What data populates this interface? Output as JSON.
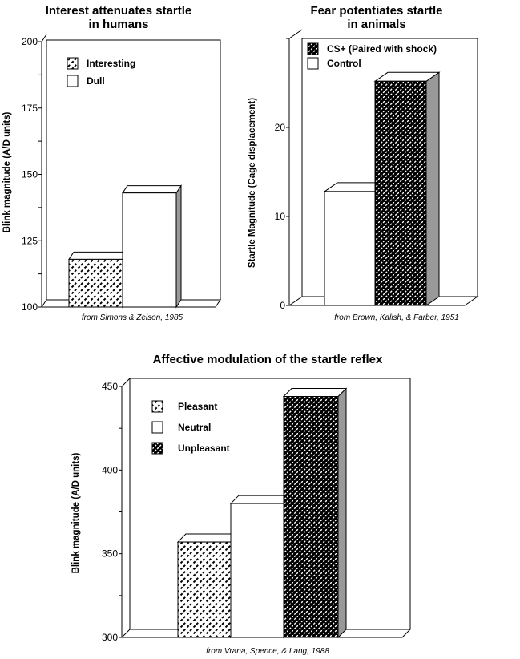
{
  "chart_data": [
    {
      "type": "bar",
      "title": [
        "Interest attenuates startle",
        "in humans"
      ],
      "ylabel": "Blink magnitude (A/D units)",
      "xlabel": "",
      "source": "from Simons &  Zelson, 1985",
      "ylim": [
        100,
        200
      ],
      "yticks": [
        100,
        125,
        150,
        175,
        200
      ],
      "categories": [
        "Interesting",
        "Dull"
      ],
      "values": [
        118,
        143
      ],
      "fills": [
        "diag-light",
        "white"
      ],
      "legend": [
        {
          "label": "Interesting",
          "fill": "diag-light"
        },
        {
          "label": "Dull",
          "fill": "white"
        }
      ],
      "legend_placement": "top-left"
    },
    {
      "type": "bar",
      "title": [
        "Fear potentiates startle",
        "in  animals"
      ],
      "ylabel": "Startle Magnitude (Cage displacement)",
      "xlabel": "",
      "source": "from Brown, Kalish, & Farber, 1951",
      "ylim": [
        0,
        30
      ],
      "yticks": [
        0,
        10,
        20
      ],
      "categories": [
        "Control",
        "CS+ (Paired with shock)"
      ],
      "values": [
        12.8,
        25.2
      ],
      "fills": [
        "white",
        "diag-dark"
      ],
      "legend": [
        {
          "label": "CS+ (Paired with shock)",
          "fill": "diag-dark"
        },
        {
          "label": "Control",
          "fill": "white"
        }
      ],
      "legend_placement": "top-left"
    },
    {
      "type": "bar",
      "title": [
        "Affective modulation of the startle reflex"
      ],
      "ylabel": "Blink magnitude (A/D units)",
      "xlabel": "",
      "source": "from Vrana, Spence, & Lang, 1988",
      "ylim": [
        300,
        450
      ],
      "yticks": [
        300,
        350,
        400,
        450
      ],
      "categories": [
        "Pleasant",
        "Neutral",
        "Unpleasant"
      ],
      "values": [
        357,
        380,
        444
      ],
      "fills": [
        "diag-light",
        "white",
        "diag-dark"
      ],
      "legend": [
        {
          "label": "Pleasant",
          "fill": "diag-light"
        },
        {
          "label": "Neutral",
          "fill": "white"
        },
        {
          "label": "Unpleasant",
          "fill": "diag-dark"
        }
      ],
      "legend_placement": "top-left"
    }
  ],
  "colors": {
    "side": "#999999",
    "ink": "#000000"
  }
}
